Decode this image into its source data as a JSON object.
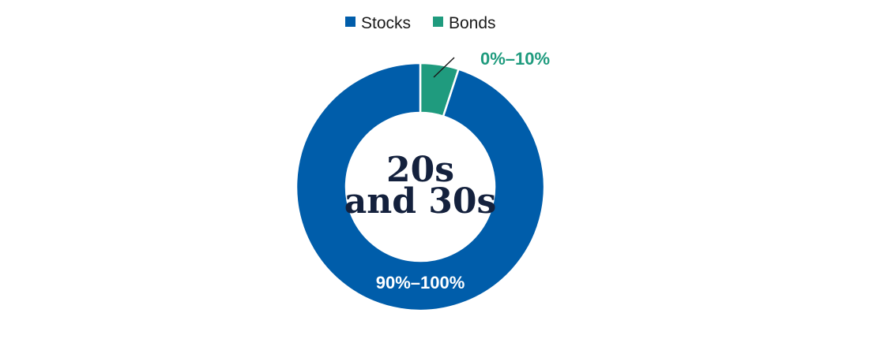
{
  "chart_data": {
    "type": "pie",
    "variant": "donut",
    "title": "",
    "center_label": [
      "20s",
      "and 30s"
    ],
    "legend": {
      "position": "top-center",
      "items": [
        {
          "name": "Stocks",
          "color": "#005DAA"
        },
        {
          "name": "Bonds",
          "color": "#1F9B7E"
        }
      ]
    },
    "slices": [
      {
        "name": "Bonds",
        "value": 5,
        "label": "0%–10%",
        "color": "#1F9B7E",
        "label_color": "#1F9B7E"
      },
      {
        "name": "Stocks",
        "value": 95,
        "label": "90%–100%",
        "color": "#005DAA",
        "label_color": "#ffffff"
      }
    ]
  }
}
